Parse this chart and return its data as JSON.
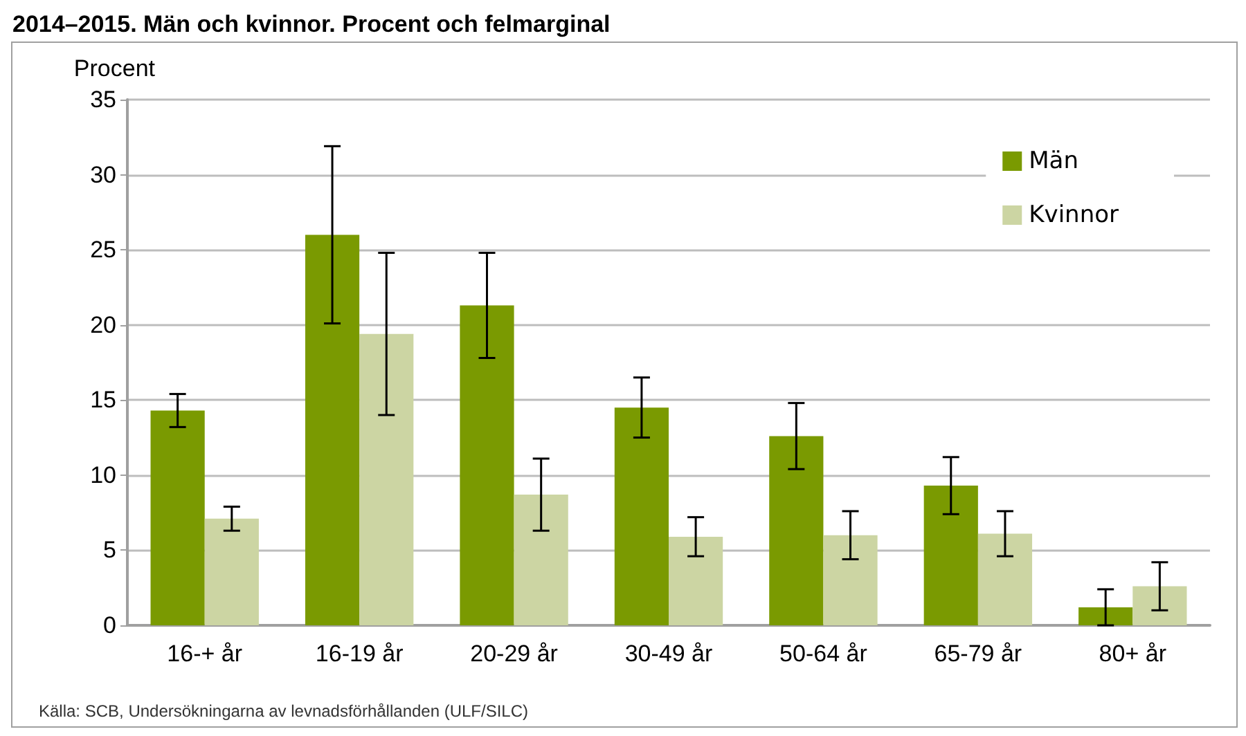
{
  "chart_data": {
    "type": "bar",
    "title": "2014–2015. Män och kvinnor. Procent och felmarginal",
    "ylabel": "Procent",
    "categories": [
      "16-+ år",
      "16-19 år",
      "20-29 år",
      "30-49 år",
      "50-64 år",
      "65-79 år",
      "80+ år"
    ],
    "series": [
      {
        "name": "Män",
        "color": "#7a9a01",
        "values": [
          14.3,
          26.0,
          21.3,
          14.5,
          12.6,
          9.3,
          1.2
        ],
        "errors": [
          1.1,
          5.9,
          3.5,
          2.0,
          2.2,
          1.9,
          1.2
        ]
      },
      {
        "name": "Kvinnor",
        "color": "#ccd5a3",
        "values": [
          7.1,
          19.4,
          8.7,
          5.9,
          6.0,
          6.1,
          2.6
        ],
        "errors": [
          0.8,
          5.4,
          2.4,
          1.3,
          1.6,
          1.5,
          1.6
        ]
      }
    ],
    "ylim": [
      0,
      35
    ],
    "yticks": [
      0,
      5,
      10,
      15,
      20,
      25,
      30,
      35
    ],
    "grid": "y",
    "legend": "top right",
    "annotations": [
      "Källa: SCB, Undersökningarna av levnadsförhållanden (ULF/SILC)"
    ]
  }
}
